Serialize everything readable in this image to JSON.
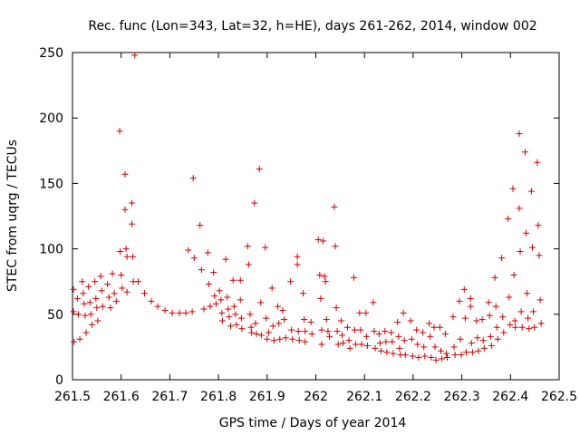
{
  "chart_data": {
    "type": "scatter",
    "title": "Rec. func (Lon=343, Lat=32, h=HE), days 261-262, 2014, window 002",
    "xlabel": "GPS time / Days of year 2014",
    "ylabel": "STEC from uqrg / TECUs",
    "xlim": [
      261.5,
      262.5
    ],
    "ylim": [
      0,
      250
    ],
    "x_ticks": [
      "261.5",
      "261.6",
      "261.7",
      "261.8",
      "261.9",
      "262",
      "262.1",
      "262.2",
      "262.3",
      "262.4",
      "262.5"
    ],
    "y_ticks": [
      "0",
      "50",
      "100",
      "150",
      "200",
      "250"
    ],
    "marker": "+",
    "color": "#cc0000",
    "grid": false,
    "series": [
      {
        "name": "STEC",
        "points": [
          [
            261.502,
            69
          ],
          [
            261.502,
            52
          ],
          [
            261.503,
            29
          ],
          [
            261.51,
            62
          ],
          [
            261.512,
            50
          ],
          [
            261.515,
            31
          ],
          [
            261.52,
            75
          ],
          [
            261.522,
            66
          ],
          [
            261.524,
            58
          ],
          [
            261.526,
            49
          ],
          [
            261.528,
            36
          ],
          [
            261.533,
            71
          ],
          [
            261.536,
            59
          ],
          [
            261.538,
            50
          ],
          [
            261.54,
            42
          ],
          [
            261.546,
            75
          ],
          [
            261.548,
            62
          ],
          [
            261.55,
            55
          ],
          [
            261.552,
            45
          ],
          [
            261.558,
            79
          ],
          [
            261.56,
            68
          ],
          [
            261.562,
            56
          ],
          [
            261.572,
            73
          ],
          [
            261.575,
            63
          ],
          [
            261.578,
            55
          ],
          [
            261.582,
            81
          ],
          [
            261.586,
            66
          ],
          [
            261.59,
            60
          ],
          [
            261.597,
            190
          ],
          [
            261.598,
            98
          ],
          [
            261.6,
            80
          ],
          [
            261.602,
            70
          ],
          [
            261.608,
            157
          ],
          [
            261.608,
            130
          ],
          [
            261.61,
            100
          ],
          [
            261.612,
            94
          ],
          [
            261.612,
            67
          ],
          [
            261.622,
            135
          ],
          [
            261.622,
            119
          ],
          [
            261.624,
            94
          ],
          [
            261.625,
            75
          ],
          [
            261.628,
            248
          ],
          [
            261.635,
            75
          ],
          [
            261.648,
            66
          ],
          [
            261.662,
            60
          ],
          [
            261.675,
            56
          ],
          [
            261.69,
            53
          ],
          [
            261.705,
            51
          ],
          [
            261.72,
            51
          ],
          [
            261.733,
            51
          ],
          [
            261.738,
            99
          ],
          [
            261.746,
            52
          ],
          [
            261.748,
            154
          ],
          [
            261.75,
            93
          ],
          [
            261.762,
            118
          ],
          [
            261.765,
            84
          ],
          [
            261.77,
            54
          ],
          [
            261.778,
            97
          ],
          [
            261.78,
            73
          ],
          [
            261.783,
            56
          ],
          [
            261.79,
            82
          ],
          [
            261.792,
            64
          ],
          [
            261.795,
            58
          ],
          [
            261.802,
            68
          ],
          [
            261.805,
            61
          ],
          [
            261.807,
            51
          ],
          [
            261.808,
            45
          ],
          [
            261.815,
            92
          ],
          [
            261.818,
            63
          ],
          [
            261.82,
            54
          ],
          [
            261.822,
            48
          ],
          [
            261.825,
            41
          ],
          [
            261.83,
            76
          ],
          [
            261.832,
            56
          ],
          [
            261.835,
            50
          ],
          [
            261.837,
            42
          ],
          [
            261.845,
            76
          ],
          [
            261.845,
            61
          ],
          [
            261.847,
            47
          ],
          [
            261.848,
            39
          ],
          [
            261.86,
            102
          ],
          [
            261.862,
            88
          ],
          [
            261.865,
            50
          ],
          [
            261.867,
            40
          ],
          [
            261.868,
            36
          ],
          [
            261.874,
            135
          ],
          [
            261.876,
            43
          ],
          [
            261.878,
            35
          ],
          [
            261.884,
            161
          ],
          [
            261.887,
            59
          ],
          [
            261.888,
            34
          ],
          [
            261.896,
            101
          ],
          [
            261.898,
            47
          ],
          [
            261.9,
            31
          ],
          [
            261.903,
            36
          ],
          [
            261.91,
            70
          ],
          [
            261.912,
            41
          ],
          [
            261.914,
            30
          ],
          [
            261.922,
            56
          ],
          [
            261.924,
            43
          ],
          [
            261.926,
            31
          ],
          [
            261.932,
            53
          ],
          [
            261.935,
            46
          ],
          [
            261.938,
            32
          ],
          [
            261.948,
            75
          ],
          [
            261.95,
            38
          ],
          [
            261.952,
            31
          ],
          [
            261.962,
            94
          ],
          [
            261.962,
            88
          ],
          [
            261.964,
            37
          ],
          [
            261.966,
            30
          ],
          [
            261.974,
            66
          ],
          [
            261.976,
            46
          ],
          [
            261.978,
            37
          ],
          [
            261.978,
            29
          ],
          [
            261.99,
            44
          ],
          [
            261.992,
            35
          ],
          [
            262.005,
            107
          ],
          [
            262.008,
            80
          ],
          [
            262.01,
            62
          ],
          [
            262.012,
            38
          ],
          [
            262.012,
            27
          ],
          [
            262.015,
            106
          ],
          [
            262.018,
            79
          ],
          [
            262.02,
            75
          ],
          [
            262.022,
            46
          ],
          [
            262.025,
            37
          ],
          [
            262.028,
            33
          ],
          [
            262.038,
            132
          ],
          [
            262.04,
            102
          ],
          [
            262.042,
            55
          ],
          [
            262.044,
            37
          ],
          [
            262.046,
            27
          ],
          [
            262.052,
            45
          ],
          [
            262.054,
            34
          ],
          [
            262.056,
            28
          ],
          [
            262.065,
            40
          ],
          [
            262.068,
            30
          ],
          [
            262.07,
            24
          ],
          [
            262.078,
            78
          ],
          [
            262.08,
            38
          ],
          [
            262.082,
            27
          ],
          [
            262.09,
            51
          ],
          [
            262.092,
            38
          ],
          [
            262.094,
            27
          ],
          [
            262.103,
            51
          ],
          [
            262.104,
            33
          ],
          [
            262.106,
            26
          ],
          [
            262.118,
            59
          ],
          [
            262.12,
            37
          ],
          [
            262.122,
            24
          ],
          [
            262.13,
            35
          ],
          [
            262.132,
            28
          ],
          [
            262.134,
            22
          ],
          [
            262.142,
            37
          ],
          [
            262.144,
            29
          ],
          [
            262.146,
            21
          ],
          [
            262.155,
            36
          ],
          [
            262.157,
            29
          ],
          [
            262.159,
            20
          ],
          [
            262.168,
            44
          ],
          [
            262.17,
            33
          ],
          [
            262.172,
            24
          ],
          [
            262.174,
            19
          ],
          [
            262.18,
            51
          ],
          [
            262.182,
            30
          ],
          [
            262.184,
            19
          ],
          [
            262.195,
            45
          ],
          [
            262.197,
            31
          ],
          [
            262.199,
            18
          ],
          [
            262.207,
            38
          ],
          [
            262.209,
            27
          ],
          [
            262.211,
            17
          ],
          [
            262.22,
            36
          ],
          [
            262.222,
            25
          ],
          [
            262.224,
            18
          ],
          [
            262.233,
            43
          ],
          [
            262.235,
            33
          ],
          [
            262.237,
            17
          ],
          [
            262.243,
            40
          ],
          [
            262.245,
            25
          ],
          [
            262.247,
            15
          ],
          [
            262.255,
            40
          ],
          [
            262.257,
            22
          ],
          [
            262.259,
            16
          ],
          [
            262.266,
            35
          ],
          [
            262.268,
            20
          ],
          [
            262.27,
            17
          ],
          [
            262.282,
            48
          ],
          [
            262.284,
            25
          ],
          [
            262.286,
            19
          ],
          [
            262.295,
            60
          ],
          [
            262.297,
            31
          ],
          [
            262.299,
            19
          ],
          [
            262.305,
            69
          ],
          [
            262.307,
            47
          ],
          [
            262.309,
            21
          ],
          [
            262.318,
            56
          ],
          [
            262.318,
            62
          ],
          [
            262.32,
            28
          ],
          [
            262.322,
            21
          ],
          [
            262.33,
            45
          ],
          [
            262.332,
            32
          ],
          [
            262.334,
            22
          ],
          [
            262.342,
            46
          ],
          [
            262.344,
            30
          ],
          [
            262.346,
            24
          ],
          [
            262.355,
            59
          ],
          [
            262.357,
            49
          ],
          [
            262.359,
            33
          ],
          [
            262.361,
            26
          ],
          [
            262.368,
            78
          ],
          [
            262.37,
            56
          ],
          [
            262.372,
            40
          ],
          [
            262.374,
            31
          ],
          [
            262.382,
            93
          ],
          [
            262.384,
            48
          ],
          [
            262.386,
            36
          ],
          [
            262.395,
            123
          ],
          [
            262.397,
            63
          ],
          [
            262.399,
            42
          ],
          [
            262.405,
            146
          ],
          [
            262.407,
            80
          ],
          [
            262.409,
            45
          ],
          [
            262.41,
            40
          ],
          [
            262.418,
            188
          ],
          [
            262.418,
            131
          ],
          [
            262.42,
            98
          ],
          [
            262.422,
            52
          ],
          [
            262.424,
            40
          ],
          [
            262.43,
            174
          ],
          [
            262.432,
            112
          ],
          [
            262.434,
            66
          ],
          [
            262.436,
            47
          ],
          [
            262.438,
            39
          ],
          [
            262.443,
            144
          ],
          [
            262.445,
            101
          ],
          [
            262.447,
            52
          ],
          [
            262.449,
            40
          ],
          [
            262.455,
            166
          ],
          [
            262.457,
            118
          ],
          [
            262.459,
            95
          ],
          [
            262.461,
            61
          ],
          [
            262.463,
            43
          ]
        ]
      }
    ]
  }
}
